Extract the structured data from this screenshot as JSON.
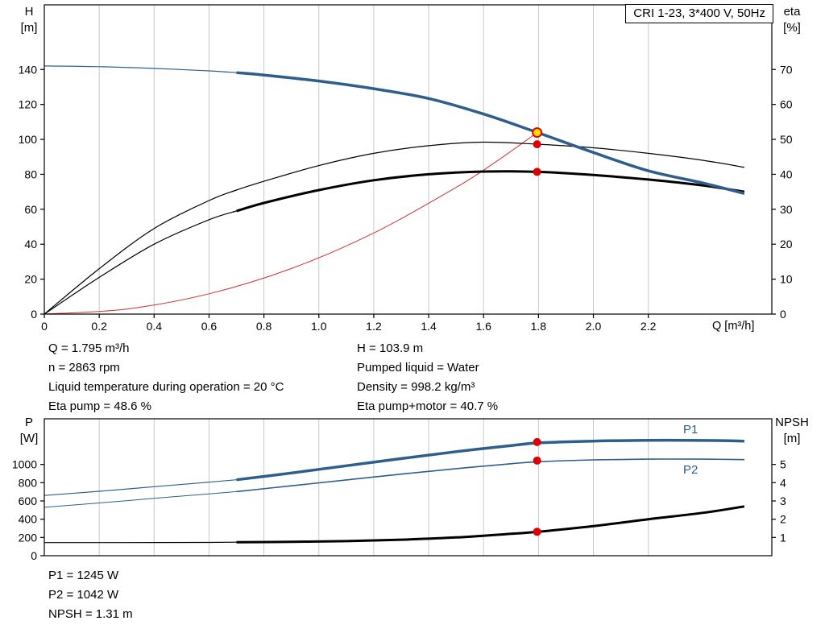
{
  "title_box": "CRI 1-23, 3*400 V, 50Hz",
  "info_top": {
    "left": [
      "Q = 1.795 m³/h",
      "n = 2863 rpm",
      "Liquid temperature during operation = 20 °C",
      "Eta pump = 48.6 %"
    ],
    "right": [
      "H = 103.9 m",
      "Pumped liquid = Water",
      "Density = 998.2 kg/m³",
      "Eta pump+motor = 40.7 %"
    ]
  },
  "info_bottom": [
    "P1 = 1245 W",
    "P2 = 1042 W",
    "NPSH = 1.31 m"
  ],
  "chart_data": [
    {
      "type": "line",
      "name": "qh-eta-chart",
      "grid_color": "#c9c9c9",
      "marker_color": "#dd0000",
      "duty_fill": "#ffdd00",
      "axes": {
        "x": {
          "label": "Q [m³/h]",
          "range": [
            0,
            2.65
          ],
          "tick_values": [
            0,
            0.2,
            0.4,
            0.6,
            0.8,
            1,
            1.2,
            1.4,
            1.6,
            1.8,
            2,
            2.2
          ],
          "tick_labels": [
            "0",
            "0.2",
            "0.4",
            "0.6",
            "0.8",
            "1.0",
            "1.2",
            "1.4",
            "1.6",
            "1.8",
            "2.0",
            "2.2"
          ]
        },
        "left": {
          "label": [
            "H",
            "[m]"
          ],
          "range": [
            0,
            177
          ],
          "ticks": [
            0,
            20,
            40,
            60,
            80,
            100,
            120,
            140
          ]
        },
        "right": {
          "label": [
            "eta",
            "[%]"
          ],
          "range": [
            0,
            88.5
          ],
          "ticks": [
            0,
            10,
            20,
            30,
            40,
            50,
            60,
            70
          ]
        }
      },
      "series": [
        {
          "name": "system-curve",
          "color": "#cc3333",
          "axis": "left",
          "width": 1,
          "points": [
            [
              0,
              0
            ],
            [
              0.3,
              2.9
            ],
            [
              0.6,
              11.6
            ],
            [
              0.9,
              26.1
            ],
            [
              1.2,
              46.4
            ],
            [
              1.5,
              72.5
            ],
            [
              1.65,
              87.7
            ],
            [
              1.795,
              103.9
            ]
          ]
        },
        {
          "name": "eta-pump",
          "color": "#000000",
          "axis": "right",
          "width": 1.2,
          "points": [
            [
              0,
              0
            ],
            [
              0.2,
              13
            ],
            [
              0.4,
              24.5
            ],
            [
              0.6,
              32.5
            ],
            [
              0.7,
              35.5
            ],
            [
              0.8,
              38
            ],
            [
              1.0,
              42.5
            ],
            [
              1.2,
              46
            ],
            [
              1.4,
              48.2
            ],
            [
              1.6,
              49.2
            ],
            [
              1.8,
              48.6
            ],
            [
              2.0,
              47.6
            ],
            [
              2.2,
              46
            ],
            [
              2.4,
              44
            ],
            [
              2.55,
              42
            ]
          ]
        },
        {
          "name": "eta-pump-motor",
          "color": "#000000",
          "axis": "right",
          "width": 3,
          "split": 0.7,
          "width_thin": 1.2,
          "points": [
            [
              0,
              0
            ],
            [
              0.2,
              10.5
            ],
            [
              0.4,
              20
            ],
            [
              0.6,
              27
            ],
            [
              0.7,
              29.5
            ],
            [
              0.8,
              31.8
            ],
            [
              1.0,
              35.5
            ],
            [
              1.2,
              38.3
            ],
            [
              1.4,
              40
            ],
            [
              1.6,
              40.8
            ],
            [
              1.8,
              40.7
            ],
            [
              2.0,
              39.8
            ],
            [
              2.2,
              38.5
            ],
            [
              2.4,
              36.8
            ],
            [
              2.55,
              35
            ]
          ]
        },
        {
          "name": "qh-curve",
          "color": "#2d5e8d",
          "axis": "left",
          "width": 3.5,
          "split": 0.7,
          "width_thin": 1.2,
          "points": [
            [
              0,
              142
            ],
            [
              0.2,
              141.6
            ],
            [
              0.4,
              140.6
            ],
            [
              0.6,
              139.2
            ],
            [
              0.7,
              138.2
            ],
            [
              0.8,
              136.8
            ],
            [
              1.0,
              133.4
            ],
            [
              1.2,
              129
            ],
            [
              1.4,
              123.4
            ],
            [
              1.6,
              114.5
            ],
            [
              1.8,
              103.7
            ],
            [
              2.0,
              92.5
            ],
            [
              2.2,
              82
            ],
            [
              2.4,
              75
            ],
            [
              2.55,
              69
            ]
          ]
        }
      ],
      "markers": [
        {
          "name": "duty-point",
          "q": 1.795,
          "v": 103.9,
          "axis": "left",
          "style": "duty"
        },
        {
          "name": "eta-pump-point",
          "q": 1.795,
          "v": 48.6,
          "axis": "right",
          "style": "dot"
        },
        {
          "name": "eta-pump-motor-point",
          "q": 1.795,
          "v": 40.7,
          "axis": "right",
          "style": "dot"
        }
      ],
      "labels": []
    },
    {
      "type": "line",
      "name": "power-npsh-chart",
      "grid_color": "#c9c9c9",
      "marker_color": "#dd0000",
      "duty_fill": "#ffdd00",
      "axes": {
        "x": {
          "label": "",
          "range": [
            0,
            2.65
          ],
          "tick_values": [
            0,
            0.2,
            0.4,
            0.6,
            0.8,
            1,
            1.2,
            1.4,
            1.6,
            1.8,
            2,
            2.2
          ],
          "tick_labels": []
        },
        "left": {
          "label": [
            "P",
            "[W]"
          ],
          "range": [
            0,
            1500
          ],
          "ticks": [
            0,
            200,
            400,
            600,
            800,
            1000
          ]
        },
        "right": {
          "label": [
            "NPSH",
            "[m]"
          ],
          "range": [
            0,
            7.5
          ],
          "ticks": [
            1,
            2,
            3,
            4,
            5
          ]
        }
      },
      "series": [
        {
          "name": "npsh",
          "color": "#000000",
          "axis": "right",
          "width": 3,
          "split": 0.7,
          "width_thin": 1.2,
          "points": [
            [
              0,
              0.72
            ],
            [
              0.3,
              0.72
            ],
            [
              0.6,
              0.73
            ],
            [
              0.7,
              0.74
            ],
            [
              0.9,
              0.76
            ],
            [
              1.1,
              0.8
            ],
            [
              1.3,
              0.88
            ],
            [
              1.5,
              1.0
            ],
            [
              1.7,
              1.2
            ],
            [
              1.8,
              1.31
            ],
            [
              2.0,
              1.62
            ],
            [
              2.2,
              2.0
            ],
            [
              2.4,
              2.35
            ],
            [
              2.55,
              2.7
            ]
          ]
        },
        {
          "name": "p2",
          "color": "#2d5e8d",
          "axis": "left",
          "width": 1.6,
          "split": 0.7,
          "width_thin": 1,
          "points": [
            [
              0,
              530
            ],
            [
              0.2,
              578
            ],
            [
              0.4,
              628
            ],
            [
              0.6,
              678
            ],
            [
              0.7,
              702
            ],
            [
              0.9,
              766
            ],
            [
              1.1,
              830
            ],
            [
              1.3,
              894
            ],
            [
              1.5,
              954
            ],
            [
              1.7,
              1008
            ],
            [
              1.8,
              1030
            ],
            [
              2.0,
              1050
            ],
            [
              2.2,
              1058
            ],
            [
              2.4,
              1058
            ],
            [
              2.55,
              1053
            ]
          ]
        },
        {
          "name": "p1",
          "color": "#2d5e8d",
          "axis": "left",
          "width": 3.5,
          "split": 0.7,
          "width_thin": 1.2,
          "points": [
            [
              0,
              660
            ],
            [
              0.2,
              706
            ],
            [
              0.4,
              756
            ],
            [
              0.6,
              806
            ],
            [
              0.7,
              832
            ],
            [
              0.9,
              906
            ],
            [
              1.1,
              986
            ],
            [
              1.3,
              1064
            ],
            [
              1.5,
              1140
            ],
            [
              1.7,
              1206
            ],
            [
              1.8,
              1236
            ],
            [
              2.0,
              1256
            ],
            [
              2.2,
              1264
            ],
            [
              2.4,
              1263
            ],
            [
              2.55,
              1256
            ]
          ]
        }
      ],
      "markers": [
        {
          "name": "p1-point",
          "q": 1.795,
          "v": 1245,
          "axis": "left",
          "style": "dot"
        },
        {
          "name": "p2-point",
          "q": 1.795,
          "v": 1042,
          "axis": "left",
          "style": "dot"
        },
        {
          "name": "npsh-point",
          "q": 1.795,
          "v": 1.31,
          "axis": "right",
          "style": "dot"
        }
      ],
      "labels": [
        {
          "text": "P1",
          "x": 848,
          "y": 26,
          "color": "#2d5e8d"
        },
        {
          "text": "P2",
          "x": 848,
          "y": 76,
          "color": "#2d5e8d"
        }
      ]
    }
  ]
}
